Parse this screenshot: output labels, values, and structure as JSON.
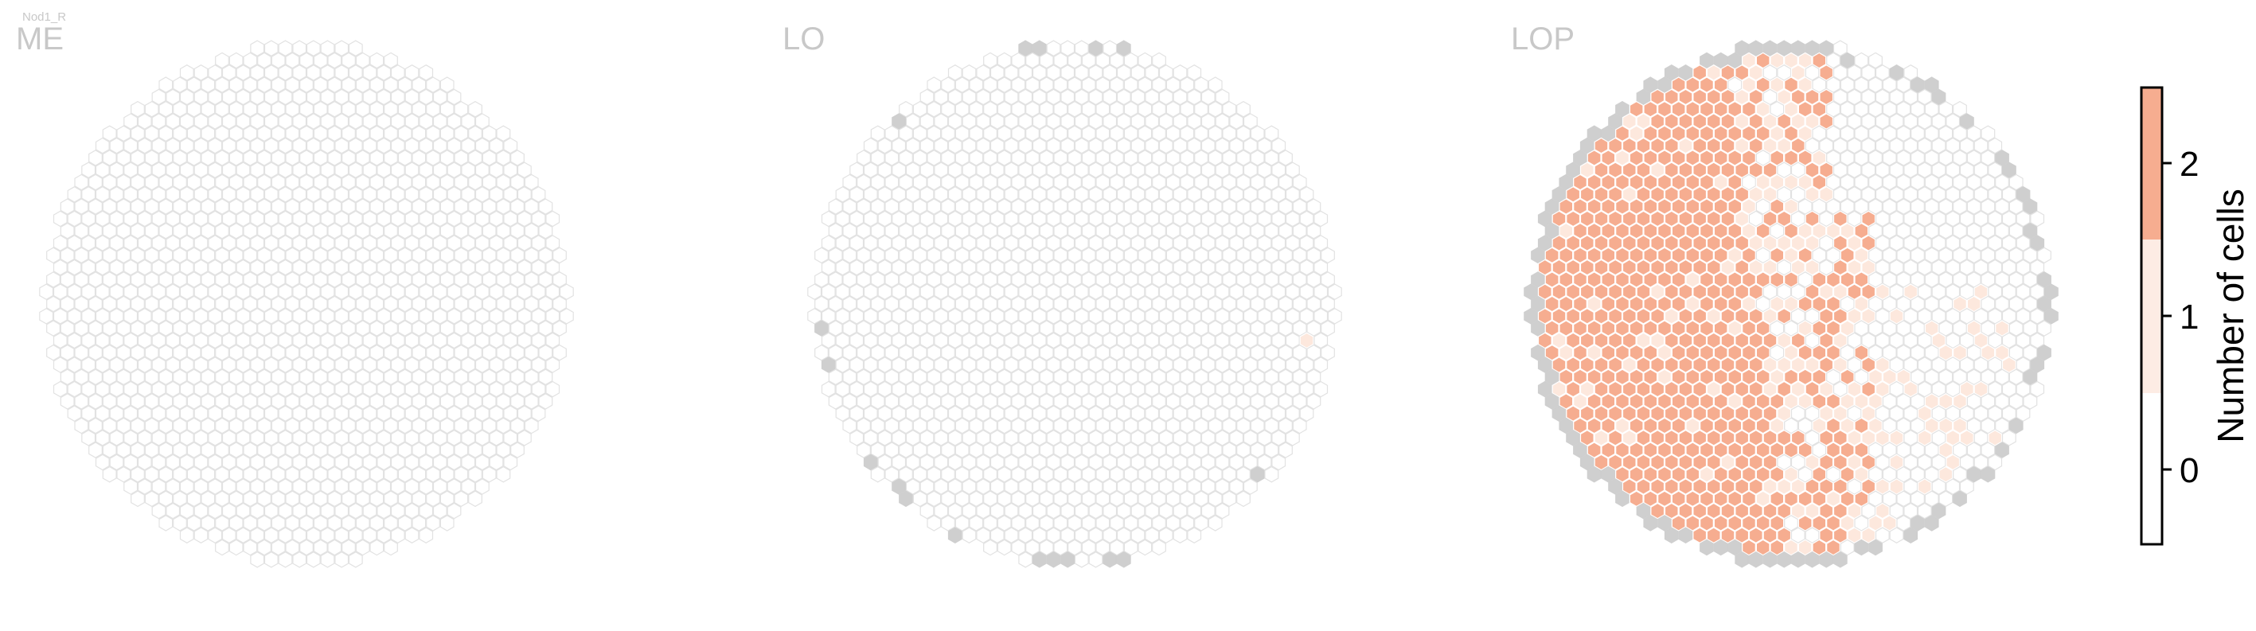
{
  "figure_label": "Nod1_R",
  "chart_data": [
    {
      "type": "heatmap",
      "title": "ME",
      "grid": "hexagonal",
      "values_described": "all columns empty (0 cells)",
      "counts": []
    },
    {
      "type": "heatmap",
      "title": "LO",
      "grid": "hexagonal",
      "values_described": "almost all columns 0 cells; one column with 1 cell on the right edge; grey edge columns",
      "counts": [
        1
      ]
    },
    {
      "type": "heatmap",
      "title": "LOP",
      "grid": "hexagonal",
      "values_described": "left half mostly 2 cells per column, scattered 1 cell columns toward center and right, grey edge columns",
      "counts": [
        0,
        1,
        2
      ]
    }
  ],
  "colorbar": {
    "label": "Number of cells",
    "ticks": [
      "0",
      "1",
      "2"
    ],
    "colors": [
      "#ffffff",
      "#fdece4",
      "#f6ad90"
    ],
    "border_color": "#000000"
  },
  "colors": {
    "empty_stroke": "#e2e2e2",
    "edge_fill": "#cfcfcf",
    "one_fill": "#fde8dd",
    "two_fill": "#f6ad90",
    "filled_stroke": "#ffffff"
  }
}
